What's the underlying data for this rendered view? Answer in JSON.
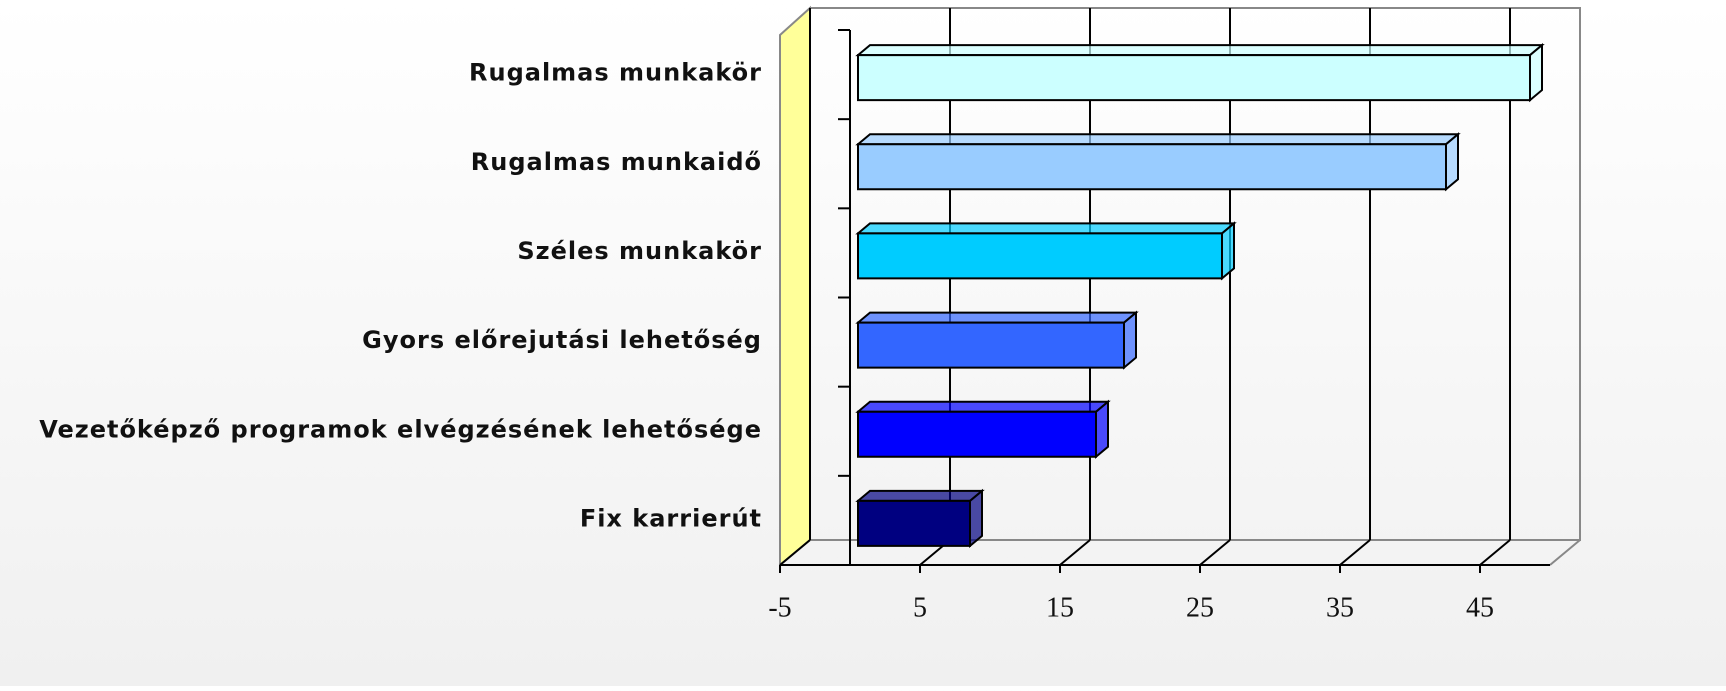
{
  "chart_data": {
    "type": "bar",
    "orientation": "horizontal",
    "categories": [
      "Rugalmas munkakör",
      "Rugalmas munkaidő",
      "Széles munkakör",
      "Gyors előrejutási lehetőség",
      "Vezetőképző programok elvégzésének lehetősége",
      "Fix karrierút"
    ],
    "values": [
      48,
      42,
      26,
      19,
      17,
      8
    ],
    "colors": [
      "#ccffff",
      "#99ccff",
      "#00ccff",
      "#3366ff",
      "#0000ff",
      "#000080"
    ],
    "xlim": [
      -5,
      50
    ],
    "xticks": [
      -5,
      5,
      15,
      25,
      35,
      45
    ],
    "grid": true
  }
}
